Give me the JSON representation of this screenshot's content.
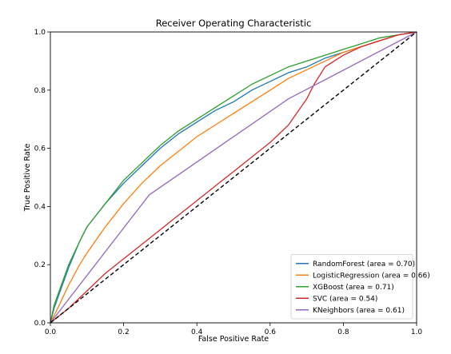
{
  "chart_data": {
    "type": "line",
    "title": "Receiver Operating Characteristic",
    "xlabel": "False Positive Rate",
    "ylabel": "True Positive Rate",
    "xlim": [
      0.0,
      1.0
    ],
    "ylim": [
      0.0,
      1.0
    ],
    "xticks": [
      "0.0",
      "0.2",
      "0.4",
      "0.6",
      "0.8",
      "1.0"
    ],
    "yticks": [
      "0.0",
      "0.2",
      "0.4",
      "0.6",
      "0.8",
      "1.0"
    ],
    "grid": false,
    "legend_position": "lower-right",
    "series": [
      {
        "name": "RandomForest (area = 0.70)",
        "color": "#1f77b4",
        "x": [
          0,
          0.01,
          0.03,
          0.05,
          0.08,
          0.1,
          0.15,
          0.2,
          0.25,
          0.3,
          0.35,
          0.4,
          0.45,
          0.5,
          0.55,
          0.6,
          0.65,
          0.7,
          0.75,
          0.8,
          0.85,
          0.9,
          0.95,
          1.0
        ],
        "y": [
          0,
          0.05,
          0.12,
          0.19,
          0.28,
          0.33,
          0.41,
          0.48,
          0.54,
          0.6,
          0.65,
          0.69,
          0.73,
          0.76,
          0.8,
          0.83,
          0.86,
          0.88,
          0.91,
          0.93,
          0.95,
          0.97,
          0.99,
          1.0
        ]
      },
      {
        "name": "LogisticRegression (area = 0.66)",
        "color": "#ff7f0e",
        "x": [
          0,
          0.02,
          0.05,
          0.08,
          0.1,
          0.15,
          0.2,
          0.25,
          0.3,
          0.35,
          0.4,
          0.45,
          0.5,
          0.55,
          0.6,
          0.65,
          0.7,
          0.75,
          0.8,
          0.85,
          0.9,
          0.95,
          1.0
        ],
        "y": [
          0,
          0.05,
          0.13,
          0.2,
          0.24,
          0.33,
          0.41,
          0.48,
          0.54,
          0.59,
          0.64,
          0.68,
          0.72,
          0.76,
          0.8,
          0.84,
          0.87,
          0.9,
          0.93,
          0.95,
          0.97,
          0.99,
          1.0
        ]
      },
      {
        "name": "XGBoost (area = 0.71)",
        "color": "#2ca02c",
        "x": [
          0,
          0.01,
          0.03,
          0.05,
          0.08,
          0.1,
          0.15,
          0.2,
          0.25,
          0.3,
          0.35,
          0.4,
          0.45,
          0.5,
          0.55,
          0.6,
          0.65,
          0.7,
          0.75,
          0.8,
          0.85,
          0.9,
          0.95,
          1.0
        ],
        "y": [
          0,
          0.06,
          0.13,
          0.2,
          0.28,
          0.33,
          0.41,
          0.49,
          0.55,
          0.61,
          0.66,
          0.7,
          0.74,
          0.78,
          0.82,
          0.85,
          0.88,
          0.9,
          0.92,
          0.94,
          0.96,
          0.98,
          0.99,
          1.0
        ]
      },
      {
        "name": "SVC (area = 0.54)",
        "color": "#d62728",
        "x": [
          0,
          0.05,
          0.1,
          0.15,
          0.2,
          0.25,
          0.3,
          0.35,
          0.4,
          0.45,
          0.5,
          0.55,
          0.6,
          0.65,
          0.7,
          0.72,
          0.75,
          0.8,
          0.85,
          0.9,
          0.95,
          1.0
        ],
        "y": [
          0,
          0.05,
          0.11,
          0.17,
          0.22,
          0.27,
          0.32,
          0.37,
          0.42,
          0.47,
          0.52,
          0.57,
          0.62,
          0.68,
          0.77,
          0.82,
          0.88,
          0.92,
          0.95,
          0.97,
          0.99,
          1.0
        ]
      },
      {
        "name": "KNeighbors (area = 0.61)",
        "color": "#9467bd",
        "x": [
          0,
          0.27,
          0.65,
          1.0
        ],
        "y": [
          0,
          0.44,
          0.77,
          1.0
        ]
      },
      {
        "name": "",
        "color": "#000000",
        "dashed": true,
        "x": [
          0,
          1
        ],
        "y": [
          0,
          1
        ]
      }
    ]
  }
}
